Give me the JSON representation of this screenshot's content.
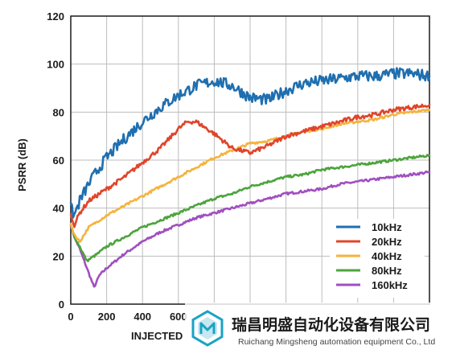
{
  "chart_data": {
    "type": "line",
    "title": "",
    "xlabel": "INJECTED",
    "ylabel": "PSRR (dB)",
    "xlim": [
      0,
      2000
    ],
    "ylim": [
      0,
      120
    ],
    "x_ticks": [
      "0",
      "200",
      "400",
      "600"
    ],
    "y_ticks": [
      "0",
      "20",
      "40",
      "60",
      "80",
      "100",
      "120"
    ],
    "grid": true,
    "legend_position": "bottom-right",
    "series": [
      {
        "name": "10kHz",
        "color": "#1f6fb0",
        "x": [
          0,
          20,
          50,
          100,
          150,
          200,
          300,
          400,
          500,
          600,
          700,
          800,
          900,
          1000,
          1100,
          1200,
          1300,
          1400,
          1500,
          1600,
          1700,
          1800,
          1900,
          2000
        ],
        "y": [
          40,
          37,
          43,
          50,
          56,
          61,
          69,
          76,
          82,
          87,
          91,
          93,
          91,
          86,
          85,
          89,
          92,
          93,
          94,
          95,
          95,
          96,
          96,
          95
        ]
      },
      {
        "name": "20kHz",
        "color": "#e0452b",
        "x": [
          0,
          20,
          50,
          100,
          200,
          300,
          400,
          500,
          600,
          650,
          700,
          800,
          900,
          1000,
          1100,
          1200,
          1300,
          1400,
          1500,
          1600,
          1700,
          1800,
          1900,
          2000
        ],
        "y": [
          37,
          33,
          38,
          43,
          48,
          53,
          59,
          65,
          73,
          76,
          76,
          71,
          65,
          63,
          66,
          70,
          72,
          74,
          76,
          78,
          79,
          81,
          82,
          83
        ]
      },
      {
        "name": "40kHz",
        "color": "#f5b33d",
        "x": [
          0,
          20,
          50,
          100,
          200,
          300,
          400,
          500,
          600,
          700,
          800,
          900,
          1000,
          1100,
          1200,
          1300,
          1400,
          1500,
          1600,
          1700,
          1800,
          1900,
          2000
        ],
        "y": [
          33,
          29,
          26,
          32,
          37,
          41,
          45,
          49,
          53,
          57,
          61,
          64,
          67,
          68,
          70,
          72,
          73,
          75,
          76,
          77,
          79,
          80,
          81
        ]
      },
      {
        "name": "80kHz",
        "color": "#4ca43c",
        "x": [
          0,
          20,
          50,
          90,
          150,
          200,
          300,
          400,
          500,
          600,
          700,
          800,
          900,
          1000,
          1100,
          1200,
          1300,
          1400,
          1500,
          1600,
          1700,
          1800,
          1900,
          2000
        ],
        "y": [
          33,
          28,
          24,
          18,
          21,
          24,
          28,
          32,
          35,
          38,
          41,
          44,
          46,
          49,
          51,
          53,
          54,
          56,
          57,
          58,
          59,
          60,
          61,
          62
        ]
      },
      {
        "name": "160kHz",
        "color": "#a04fc0",
        "x": [
          0,
          20,
          50,
          100,
          130,
          160,
          200,
          300,
          400,
          500,
          600,
          700,
          800,
          900,
          1000,
          1100,
          1200,
          1300,
          1400,
          1500,
          1600,
          1700,
          1800,
          1900,
          2000
        ],
        "y": [
          33,
          28,
          23,
          13,
          7,
          12,
          15,
          21,
          26,
          30,
          33,
          36,
          38,
          40,
          42,
          44,
          46,
          47,
          48,
          50,
          51,
          52,
          53,
          54,
          55
        ]
      }
    ]
  },
  "watermark": {
    "company_cn": "瑞昌明盛自动化设备有限公司",
    "company_en": "Ruichang Mingsheng automation equipment Co., Ltd",
    "logo_color": "#1aa3c4"
  }
}
